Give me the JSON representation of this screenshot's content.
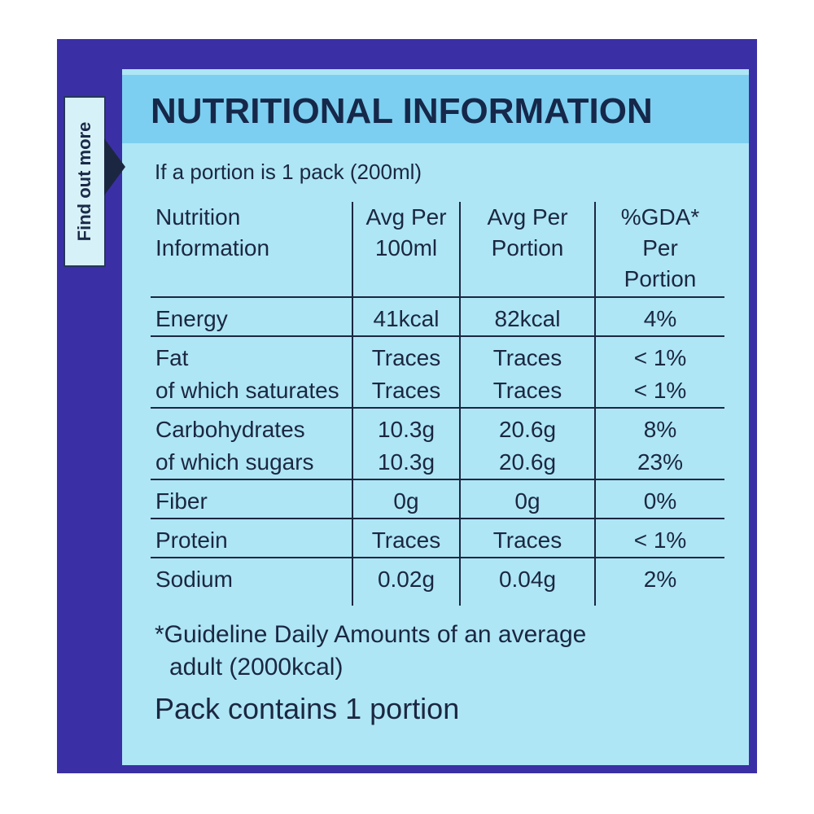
{
  "side_tab": "Find out more",
  "header": {
    "title": "NUTRITIONAL INFORMATION"
  },
  "table": {
    "caption": "If a portion is 1 pack (200ml)",
    "columns": [
      [
        "Nutrition",
        "Information"
      ],
      [
        "Avg Per",
        "100ml"
      ],
      [
        "Avg Per",
        "Portion"
      ],
      [
        "%GDA* Per",
        "Portion"
      ]
    ],
    "groups": [
      [
        [
          "Energy",
          "41kcal",
          "82kcal",
          "4%"
        ]
      ],
      [
        [
          "Fat",
          "Traces",
          "Traces",
          "< 1%"
        ],
        [
          "of which saturates",
          "Traces",
          "Traces",
          "< 1%"
        ]
      ],
      [
        [
          "Carbohydrates",
          "10.3g",
          "20.6g",
          "8%"
        ],
        [
          "of which sugars",
          "10.3g",
          "20.6g",
          "23%"
        ]
      ],
      [
        [
          "Fiber",
          "0g",
          "0g",
          "0%"
        ]
      ],
      [
        [
          "Protein",
          "Traces",
          "Traces",
          "< 1%"
        ]
      ],
      [
        [
          "Sodium",
          "0.02g",
          "0.04g",
          "2%"
        ]
      ]
    ]
  },
  "footer": {
    "footnote": [
      "*Guideline Daily Amounts of an average",
      "adult (2000kcal)"
    ],
    "note": "Pack contains 1 portion"
  }
}
